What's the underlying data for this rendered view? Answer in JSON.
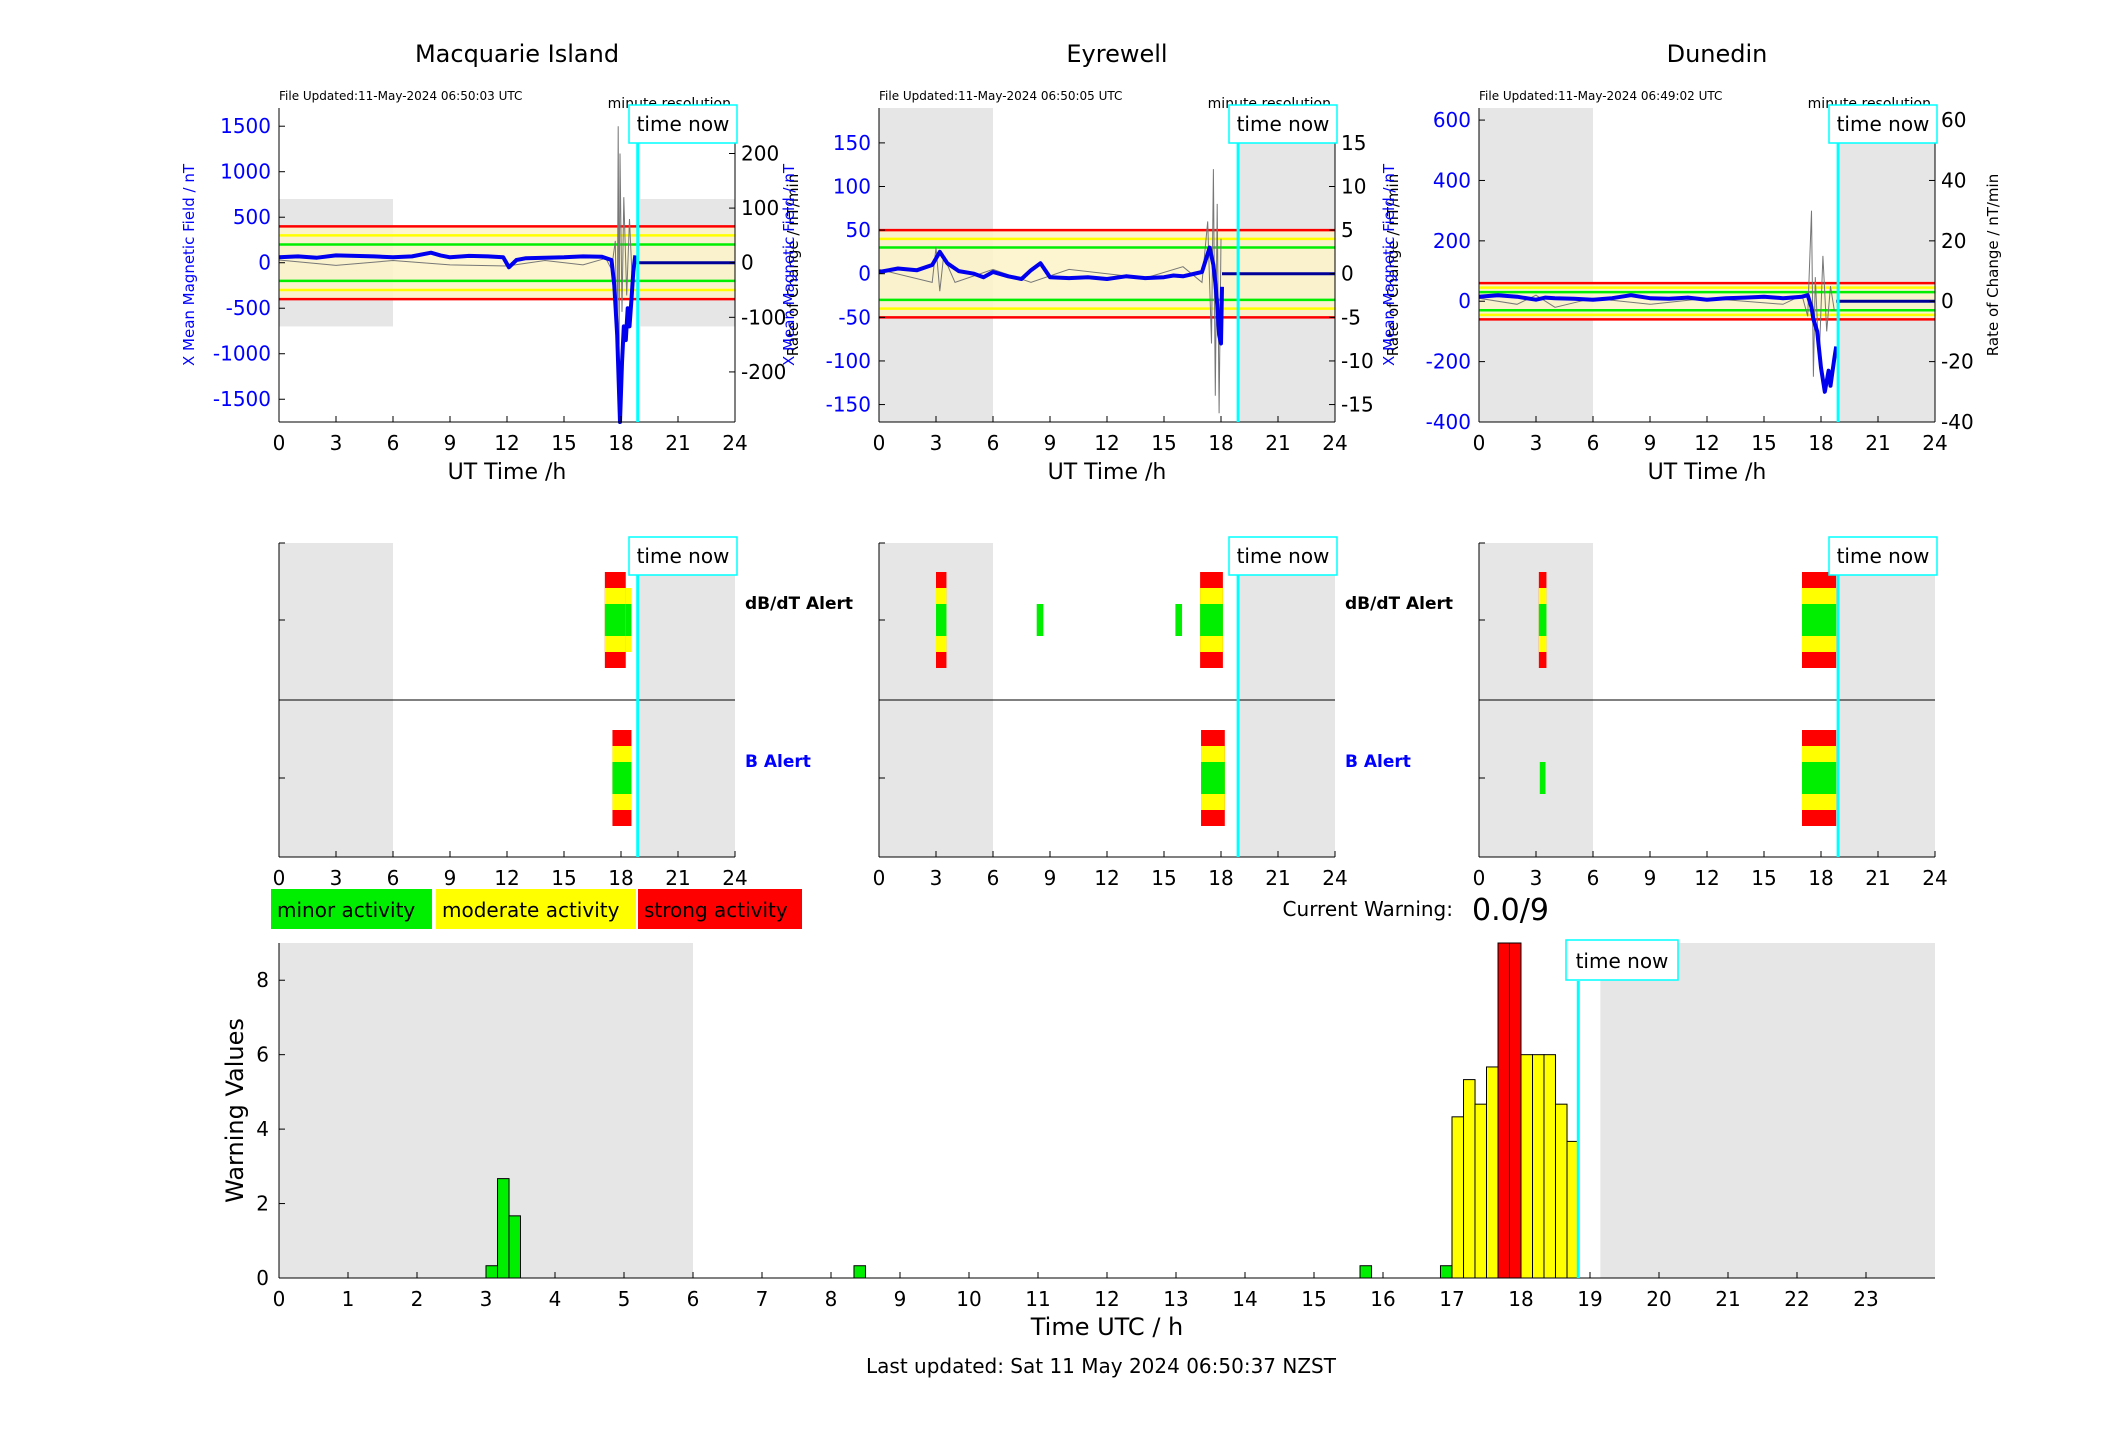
{
  "colors": {
    "blue_axis": "#0000ff",
    "field_line": "#0000ee",
    "field_line_flat": "#000099",
    "cyan": "#00ffff",
    "grey_shade": "#e6e6e6",
    "minor": "#00ee00",
    "moderate": "#ffff00",
    "strong": "#ff0000",
    "tick": "#000000"
  },
  "stations": [
    {
      "name": "Macquarie Island",
      "file_updated": "File Updated:11-May-2024 06:50:03 UTC",
      "resolution": "minute resolution",
      "y_left_label": "X Mean Magnetic Field / nT",
      "y_right_label": "Rate of Change / nT/min",
      "y_left_ticks": [
        -1500,
        -1000,
        -500,
        0,
        500,
        1000,
        1500
      ],
      "y_left_range": [
        -1750,
        1700
      ],
      "y_right_ticks": [
        -200,
        -100,
        0,
        100,
        200
      ],
      "y_right_range": [
        -291.7,
        283.3
      ],
      "thresholds": {
        "red": 400,
        "yellow": 300,
        "green": 200
      },
      "shade": [
        {
          "x0": 0,
          "x1": 6,
          "y0": -700,
          "y1": 700
        },
        {
          "x0": 19,
          "x1": 24,
          "y0": -700,
          "y1": 700
        }
      ],
      "time_now": 18.88,
      "field_series": [
        [
          0,
          60
        ],
        [
          1,
          70
        ],
        [
          2,
          55
        ],
        [
          3,
          80
        ],
        [
          4,
          75
        ],
        [
          5,
          70
        ],
        [
          6,
          60
        ],
        [
          7,
          70
        ],
        [
          8,
          110
        ],
        [
          8.5,
          80
        ],
        [
          9,
          60
        ],
        [
          10,
          75
        ],
        [
          11,
          70
        ],
        [
          11.8,
          60
        ],
        [
          12.1,
          -50
        ],
        [
          12.5,
          30
        ],
        [
          13,
          50
        ],
        [
          14,
          55
        ],
        [
          15,
          60
        ],
        [
          16,
          70
        ],
        [
          17,
          65
        ],
        [
          17.5,
          30
        ],
        [
          17.65,
          -250
        ],
        [
          17.8,
          -800
        ],
        [
          17.95,
          -1750
        ],
        [
          18.05,
          -1100
        ],
        [
          18.15,
          -700
        ],
        [
          18.25,
          -850
        ],
        [
          18.35,
          -500
        ],
        [
          18.45,
          -700
        ],
        [
          18.55,
          -400
        ],
        [
          18.65,
          -100
        ],
        [
          18.75,
          80
        ]
      ],
      "field_flat": [
        [
          18.75,
          0
        ],
        [
          24,
          0
        ]
      ],
      "roc_series": [
        [
          0,
          5
        ],
        [
          3,
          -5
        ],
        [
          6,
          4
        ],
        [
          9,
          -4
        ],
        [
          12,
          -6
        ],
        [
          14,
          4
        ],
        [
          16,
          -4
        ],
        [
          17.2,
          8
        ],
        [
          17.5,
          -12
        ],
        [
          17.7,
          40
        ],
        [
          17.8,
          -180
        ],
        [
          17.85,
          250
        ],
        [
          17.9,
          -150
        ],
        [
          17.95,
          200
        ],
        [
          18.05,
          -90
        ],
        [
          18.15,
          120
        ],
        [
          18.3,
          -60
        ],
        [
          18.45,
          80
        ],
        [
          18.6,
          -40
        ],
        [
          18.75,
          10
        ]
      ],
      "alerts": {
        "dbdt": [
          {
            "t0": 17.15,
            "t1": 18.25,
            "level": 3
          },
          {
            "t0": 18.25,
            "t1": 18.55,
            "level": 2
          }
        ],
        "b": [
          {
            "t0": 17.55,
            "t1": 18.55,
            "level": 3
          }
        ]
      }
    },
    {
      "name": "Eyrewell",
      "file_updated": "File Updated:11-May-2024 06:50:05 UTC",
      "resolution": "minute resolution",
      "y_left_label": "X Mean Magnetic Field / nT",
      "y_right_label": "Rate of Change / nT/min",
      "y_left_ticks": [
        -150,
        -100,
        -50,
        0,
        50,
        100,
        150
      ],
      "y_left_range": [
        -170,
        190
      ],
      "y_right_ticks": [
        -15,
        -10,
        -5,
        0,
        5,
        10,
        15
      ],
      "y_right_range": [
        -17,
        19
      ],
      "thresholds": {
        "red": 50,
        "yellow": 40,
        "green": 30
      },
      "shade": [
        {
          "x0": 0,
          "x1": 6,
          "y0": -170,
          "y1": 190
        },
        {
          "x0": 19,
          "x1": 24,
          "y0": -170,
          "y1": 190
        }
      ],
      "time_now": 18.9,
      "field_series": [
        [
          0,
          2
        ],
        [
          1,
          6
        ],
        [
          2,
          4
        ],
        [
          2.8,
          10
        ],
        [
          3.2,
          25
        ],
        [
          3.6,
          12
        ],
        [
          4.2,
          3
        ],
        [
          5,
          0
        ],
        [
          5.5,
          -4
        ],
        [
          6,
          2
        ],
        [
          6.8,
          -3
        ],
        [
          7.5,
          -6
        ],
        [
          8,
          4
        ],
        [
          8.5,
          12
        ],
        [
          9,
          -4
        ],
        [
          10,
          -5
        ],
        [
          11,
          -4
        ],
        [
          12,
          -6
        ],
        [
          13,
          -3
        ],
        [
          14,
          -5
        ],
        [
          15,
          -4
        ],
        [
          15.5,
          -2
        ],
        [
          16,
          -3
        ],
        [
          17,
          2
        ],
        [
          17.4,
          30
        ],
        [
          17.6,
          10
        ],
        [
          17.7,
          -10
        ],
        [
          17.8,
          -35
        ],
        [
          17.9,
          -70
        ],
        [
          18.0,
          -80
        ],
        [
          18.05,
          -15
        ]
      ],
      "field_flat": [
        [
          18.05,
          0
        ],
        [
          24,
          0
        ]
      ],
      "roc_series": [
        [
          0,
          0.5
        ],
        [
          2.8,
          -1
        ],
        [
          3,
          3
        ],
        [
          3.2,
          -2
        ],
        [
          3.4,
          2
        ],
        [
          4,
          -1
        ],
        [
          6,
          0.5
        ],
        [
          8,
          -1
        ],
        [
          10,
          0.5
        ],
        [
          14,
          -0.5
        ],
        [
          16,
          0.8
        ],
        [
          17,
          -1
        ],
        [
          17.3,
          6
        ],
        [
          17.5,
          -8
        ],
        [
          17.6,
          12
        ],
        [
          17.7,
          -14
        ],
        [
          17.8,
          8
        ],
        [
          17.9,
          -16
        ],
        [
          18.0,
          4
        ]
      ],
      "alerts": {
        "dbdt": [
          {
            "t0": 3.0,
            "t1": 3.55,
            "level": 3
          },
          {
            "t0": 8.3,
            "t1": 8.65,
            "level": 1
          },
          {
            "t0": 15.6,
            "t1": 15.95,
            "level": 1
          },
          {
            "t0": 16.9,
            "t1": 18.1,
            "level": 3
          }
        ],
        "b": [
          {
            "t0": 16.95,
            "t1": 18.2,
            "level": 3
          }
        ]
      }
    },
    {
      "name": "Dunedin",
      "file_updated": "File Updated:11-May-2024 06:49:02 UTC",
      "resolution": "minute resolution",
      "y_left_label": "X Mean Magnetic Field / nT",
      "y_right_label": "Rate of Change / nT/min",
      "y_left_ticks": [
        -400,
        -200,
        0,
        200,
        400,
        600
      ],
      "y_left_range": [
        -400,
        640
      ],
      "y_right_ticks": [
        -40,
        -20,
        0,
        20,
        40,
        60
      ],
      "y_right_range": [
        -40,
        64
      ],
      "thresholds": {
        "red": 60,
        "yellow": 45,
        "green": 30
      },
      "shade": [
        {
          "x0": 0,
          "x1": 6,
          "y0": -400,
          "y1": 640
        },
        {
          "x0": 19,
          "x1": 24,
          "y0": -400,
          "y1": 640
        }
      ],
      "time_now": 18.9,
      "field_series": [
        [
          0,
          15
        ],
        [
          1,
          20
        ],
        [
          2,
          15
        ],
        [
          3,
          5
        ],
        [
          3.5,
          12
        ],
        [
          4,
          10
        ],
        [
          5,
          8
        ],
        [
          6,
          5
        ],
        [
          7,
          10
        ],
        [
          8,
          20
        ],
        [
          9,
          10
        ],
        [
          10,
          8
        ],
        [
          11,
          12
        ],
        [
          12,
          5
        ],
        [
          13,
          10
        ],
        [
          14,
          12
        ],
        [
          15,
          15
        ],
        [
          16,
          10
        ],
        [
          17,
          15
        ],
        [
          17.3,
          20
        ],
        [
          17.5,
          -20
        ],
        [
          17.6,
          -60
        ],
        [
          17.8,
          -100
        ],
        [
          18.0,
          -220
        ],
        [
          18.2,
          -300
        ],
        [
          18.4,
          -230
        ],
        [
          18.5,
          -280
        ],
        [
          18.7,
          -190
        ],
        [
          18.8,
          -150
        ]
      ],
      "field_flat": [
        [
          18.8,
          0
        ],
        [
          24,
          0
        ]
      ],
      "roc_series": [
        [
          0,
          1
        ],
        [
          2,
          -1
        ],
        [
          3,
          2
        ],
        [
          4,
          -2
        ],
        [
          6,
          1
        ],
        [
          9,
          -1
        ],
        [
          12,
          1
        ],
        [
          16,
          -1
        ],
        [
          17,
          2
        ],
        [
          17.3,
          -5
        ],
        [
          17.5,
          30
        ],
        [
          17.6,
          -25
        ],
        [
          17.7,
          8
        ],
        [
          17.9,
          -20
        ],
        [
          18.1,
          15
        ],
        [
          18.3,
          -10
        ],
        [
          18.5,
          5
        ],
        [
          18.7,
          -3
        ]
      ],
      "alerts": {
        "dbdt": [
          {
            "t0": 3.15,
            "t1": 3.55,
            "level": 3
          },
          {
            "t0": 17.0,
            "t1": 18.8,
            "level": 3
          }
        ],
        "b": [
          {
            "t0": 3.2,
            "t1": 3.5,
            "level": 1
          },
          {
            "t0": 17.0,
            "t1": 18.8,
            "level": 3
          }
        ]
      }
    }
  ],
  "alerts_panel": {
    "dbdt_label": "dB/dT Alert",
    "b_label": "B Alert"
  },
  "time_now_label": "time now",
  "x_axis_label": "UT Time /h",
  "x_ticks": [
    0,
    3,
    6,
    9,
    12,
    15,
    18,
    21,
    24
  ],
  "legend": [
    {
      "label": "minor activity",
      "color": "#00ee00"
    },
    {
      "label": "moderate activity",
      "color": "#ffff00"
    },
    {
      "label": "strong activity",
      "color": "#ff0000"
    }
  ],
  "current_warning": {
    "label": "Current Warning:",
    "value": "0.0/9"
  },
  "chart_data": {
    "type": "bar",
    "ylabel": "Warning Values",
    "xlabel": "Time UTC / h",
    "xlim": [
      0,
      24
    ],
    "ylim": [
      0,
      9
    ],
    "y_ticks": [
      0,
      2,
      4,
      6,
      8
    ],
    "x_ticks": [
      0,
      1,
      2,
      3,
      4,
      5,
      6,
      7,
      8,
      9,
      10,
      11,
      12,
      13,
      14,
      15,
      16,
      17,
      18,
      19,
      20,
      21,
      22,
      23
    ],
    "shade": [
      [
        0,
        6
      ],
      [
        19.15,
        24
      ]
    ],
    "time_now": 18.83,
    "bin_width": 0.1667,
    "bars": [
      {
        "t": 3.0,
        "v": 0.33,
        "level": "minor"
      },
      {
        "t": 3.167,
        "v": 2.67,
        "level": "minor"
      },
      {
        "t": 3.333,
        "v": 1.67,
        "level": "minor"
      },
      {
        "t": 8.333,
        "v": 0.33,
        "level": "minor"
      },
      {
        "t": 15.667,
        "v": 0.33,
        "level": "minor"
      },
      {
        "t": 16.833,
        "v": 0.33,
        "level": "minor"
      },
      {
        "t": 17.0,
        "v": 4.33,
        "level": "moderate"
      },
      {
        "t": 17.167,
        "v": 5.33,
        "level": "moderate"
      },
      {
        "t": 17.333,
        "v": 4.67,
        "level": "moderate"
      },
      {
        "t": 17.5,
        "v": 5.67,
        "level": "moderate"
      },
      {
        "t": 17.667,
        "v": 9.0,
        "level": "strong"
      },
      {
        "t": 17.833,
        "v": 9.0,
        "level": "strong"
      },
      {
        "t": 18.0,
        "v": 6.0,
        "level": "moderate"
      },
      {
        "t": 18.167,
        "v": 6.0,
        "level": "moderate"
      },
      {
        "t": 18.333,
        "v": 6.0,
        "level": "moderate"
      },
      {
        "t": 18.5,
        "v": 4.67,
        "level": "moderate"
      },
      {
        "t": 18.667,
        "v": 3.67,
        "level": "moderate"
      }
    ]
  },
  "last_updated": "Last updated: Sat 11 May 2024 06:50:37 NZST"
}
